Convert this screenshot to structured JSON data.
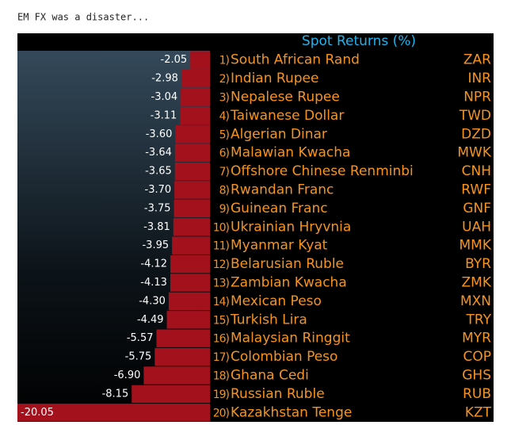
{
  "caption": "EM FX was a disaster...",
  "chart_data": {
    "type": "hbar",
    "title": "Spot Returns (%)",
    "ranks": [
      "1)",
      "2)",
      "3)",
      "4)",
      "5)",
      "6)",
      "7)",
      "8)",
      "9)",
      "10)",
      "11)",
      "12)",
      "13)",
      "14)",
      "15)",
      "16)",
      "17)",
      "18)",
      "19)",
      "20)"
    ],
    "categories": [
      "South African Rand",
      "Indian Rupee",
      "Nepalese Rupee",
      "Taiwanese Dollar",
      "Algerian Dinar",
      "Malawian Kwacha",
      "Offshore Chinese Renminbi",
      "Rwandan Franc",
      "Guinean Franc",
      "Ukrainian Hryvnia",
      "Myanmar Kyat",
      "Belarusian Ruble",
      "Zambian Kwacha",
      "Mexican Peso",
      "Turkish Lira",
      "Malaysian Ringgit",
      "Colombian Peso",
      "Ghana Cedi",
      "Russian Ruble",
      "Kazakhstan Tenge"
    ],
    "codes": [
      "ZAR",
      "INR",
      "NPR",
      "TWD",
      "DZD",
      "MWK",
      "CNH",
      "RWF",
      "GNF",
      "UAH",
      "MMK",
      "BYR",
      "ZMK",
      "MXN",
      "TRY",
      "MYR",
      "COP",
      "GHS",
      "RUB",
      "KZT"
    ],
    "values": [
      -2.05,
      -2.98,
      -3.04,
      -3.11,
      -3.6,
      -3.64,
      -3.65,
      -3.7,
      -3.75,
      -3.81,
      -3.95,
      -4.12,
      -4.13,
      -4.3,
      -4.49,
      -5.57,
      -5.75,
      -6.9,
      -8.15,
      -20.05
    ],
    "value_labels": [
      "-2.05",
      "-2.98",
      "-3.04",
      "-3.11",
      "-3.60",
      "-3.64",
      "-3.65",
      "-3.70",
      "-3.75",
      "-3.81",
      "-3.95",
      "-4.12",
      "-4.13",
      "-4.30",
      "-4.49",
      "-5.57",
      "-5.75",
      "-6.90",
      "-8.15",
      "-20.05"
    ],
    "xlim": [
      -20.05,
      0
    ],
    "color": "#a3111c",
    "title_color": "#1fb4f0",
    "label_color": "#f7941d"
  }
}
